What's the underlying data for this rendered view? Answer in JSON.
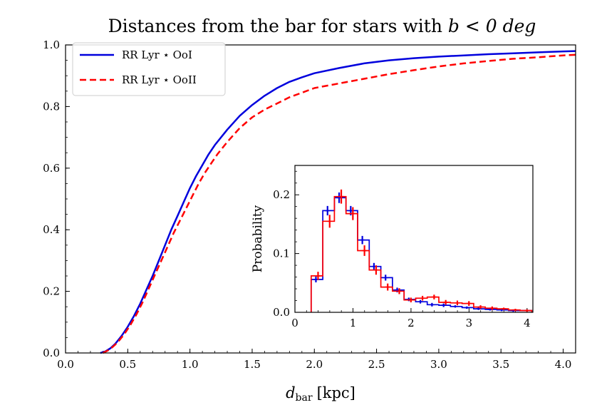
{
  "chart_data": [
    {
      "id": "main",
      "type": "line",
      "title_main": "Distances from the bar for stars with ",
      "title_math": "b < 0 deg",
      "xlabel_main": "d",
      "xlabel_sub": "bar",
      "xlabel_unit": "[kpc]",
      "xlim": [
        0.0,
        4.1
      ],
      "ylim": [
        0.0,
        1.0
      ],
      "xticks": [
        0.0,
        0.5,
        1.0,
        1.5,
        2.0,
        2.5,
        3.0,
        3.5,
        4.0
      ],
      "xtick_labels": [
        "0.0",
        "0.5",
        "1.0",
        "1.5",
        "2.0",
        "2.5",
        "3.0",
        "3.5",
        "4.0"
      ],
      "yticks": [
        0.0,
        0.2,
        0.4,
        0.6,
        0.8,
        1.0
      ],
      "ytick_labels": [
        "0.0",
        "0.2",
        "0.4",
        "0.6",
        "0.8",
        "1.0"
      ],
      "legend_position": "top-left",
      "series": [
        {
          "name": "RR Lyr ⋆ OoI",
          "color": "#0000dd",
          "dash": "solid",
          "x": [
            0.28,
            0.32,
            0.36,
            0.4,
            0.45,
            0.5,
            0.55,
            0.6,
            0.65,
            0.7,
            0.75,
            0.8,
            0.85,
            0.9,
            0.95,
            1.0,
            1.05,
            1.1,
            1.15,
            1.2,
            1.3,
            1.4,
            1.5,
            1.6,
            1.7,
            1.8,
            1.9,
            2.0,
            2.2,
            2.4,
            2.6,
            2.8,
            3.0,
            3.2,
            3.4,
            3.6,
            3.8,
            4.0,
            4.1
          ],
          "y": [
            0.0,
            0.005,
            0.015,
            0.03,
            0.055,
            0.085,
            0.12,
            0.16,
            0.205,
            0.25,
            0.3,
            0.35,
            0.4,
            0.445,
            0.49,
            0.535,
            0.575,
            0.61,
            0.645,
            0.675,
            0.725,
            0.77,
            0.805,
            0.835,
            0.86,
            0.88,
            0.895,
            0.908,
            0.925,
            0.94,
            0.95,
            0.957,
            0.962,
            0.966,
            0.97,
            0.973,
            0.976,
            0.979,
            0.98
          ]
        },
        {
          "name": "RR Lyr ⋆ OoII",
          "color": "#ff0000",
          "dash": "dashed",
          "x": [
            0.3,
            0.34,
            0.38,
            0.42,
            0.47,
            0.52,
            0.57,
            0.62,
            0.67,
            0.72,
            0.77,
            0.82,
            0.87,
            0.92,
            0.97,
            1.02,
            1.07,
            1.12,
            1.17,
            1.22,
            1.3,
            1.4,
            1.5,
            1.6,
            1.7,
            1.8,
            1.9,
            2.0,
            2.2,
            2.4,
            2.6,
            2.8,
            3.0,
            3.2,
            3.4,
            3.6,
            3.8,
            4.0,
            4.1
          ],
          "y": [
            0.0,
            0.008,
            0.02,
            0.035,
            0.06,
            0.09,
            0.125,
            0.165,
            0.21,
            0.255,
            0.3,
            0.345,
            0.39,
            0.43,
            0.47,
            0.51,
            0.55,
            0.585,
            0.615,
            0.645,
            0.685,
            0.73,
            0.765,
            0.79,
            0.81,
            0.83,
            0.845,
            0.86,
            0.875,
            0.89,
            0.905,
            0.918,
            0.93,
            0.94,
            0.948,
            0.955,
            0.96,
            0.966,
            0.968
          ]
        }
      ]
    },
    {
      "id": "inset",
      "type": "histogram",
      "ylabel": "Probability",
      "xlim": [
        0.0,
        4.1
      ],
      "ylim": [
        0.0,
        0.25
      ],
      "xticks": [
        0,
        1,
        2,
        3,
        4
      ],
      "xtick_labels": [
        "0",
        "1",
        "2",
        "3",
        "4"
      ],
      "yticks": [
        0.0,
        0.1,
        0.2
      ],
      "ytick_labels": [
        "0.0",
        "0.1",
        "0.2"
      ],
      "bin_edges": [
        0.28,
        0.48,
        0.68,
        0.88,
        1.08,
        1.28,
        1.48,
        1.68,
        1.88,
        2.08,
        2.28,
        2.48,
        2.68,
        2.88,
        3.08,
        3.28,
        3.48,
        3.68,
        3.88,
        4.08
      ],
      "series": [
        {
          "name": "RR Lyr ⋆ OoI",
          "color": "#0000dd",
          "values": [
            0.056,
            0.173,
            0.195,
            0.173,
            0.123,
            0.078,
            0.059,
            0.038,
            0.022,
            0.018,
            0.013,
            0.012,
            0.01,
            0.008,
            0.006,
            0.005,
            0.004,
            0.003,
            0.003
          ],
          "errors": [
            0.005,
            0.008,
            0.009,
            0.008,
            0.007,
            0.006,
            0.005,
            0.004,
            0.003,
            0.003,
            0.003,
            0.003,
            0.002,
            0.002,
            0.002,
            0.002,
            0.002,
            0.002,
            0.001
          ]
        },
        {
          "name": "RR Lyr ⋆ OoII",
          "color": "#ff0000",
          "values": [
            0.062,
            0.155,
            0.197,
            0.168,
            0.105,
            0.072,
            0.043,
            0.036,
            0.021,
            0.024,
            0.026,
            0.017,
            0.016,
            0.015,
            0.009,
            0.007,
            0.006,
            0.004,
            0.003
          ],
          "errors": [
            0.007,
            0.011,
            0.012,
            0.011,
            0.009,
            0.008,
            0.006,
            0.005,
            0.004,
            0.004,
            0.004,
            0.004,
            0.004,
            0.004,
            0.003,
            0.003,
            0.002,
            0.002,
            0.002
          ]
        }
      ]
    }
  ]
}
